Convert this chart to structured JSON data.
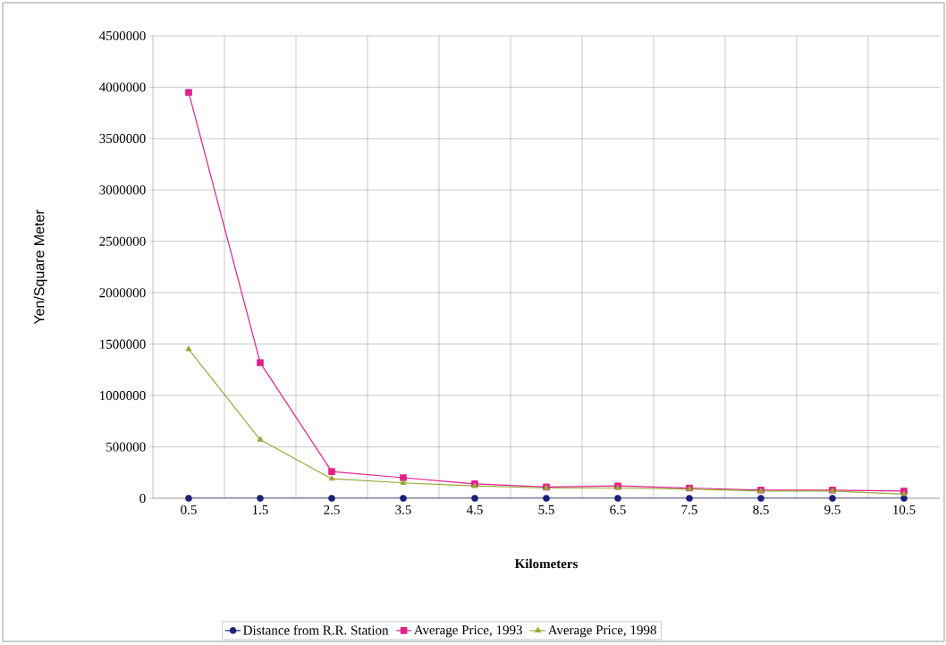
{
  "chart_data": {
    "type": "line",
    "xlabel": "Kilometers",
    "ylabel": "Yen/Square Meter",
    "categories": [
      "0.5",
      "1.5",
      "2.5",
      "3.5",
      "4.5",
      "5.5",
      "6.5",
      "7.5",
      "8.5",
      "9.5",
      "10.5"
    ],
    "series": [
      {
        "name": "Distance from R.R. Station",
        "color": "#1f1f7a",
        "marker": "circle",
        "values": [
          0,
          0,
          0,
          0,
          0,
          0,
          0,
          0,
          0,
          0,
          0
        ]
      },
      {
        "name": "Average Price, 1993",
        "color": "#e0218a",
        "marker": "square",
        "values": [
          3950000,
          1320000,
          260000,
          200000,
          140000,
          110000,
          120000,
          100000,
          80000,
          80000,
          70000
        ]
      },
      {
        "name": "Average Price, 1998",
        "color": "#9aa83a",
        "marker": "triangle",
        "values": [
          1450000,
          570000,
          190000,
          150000,
          120000,
          100000,
          100000,
          90000,
          70000,
          70000,
          40000
        ]
      }
    ],
    "ylim": [
      0,
      4500000
    ],
    "yticks": [
      0,
      500000,
      1000000,
      1500000,
      2000000,
      2500000,
      3000000,
      3500000,
      4000000,
      4500000
    ],
    "grid": true,
    "legend": "bottom",
    "line_style": "solid"
  }
}
